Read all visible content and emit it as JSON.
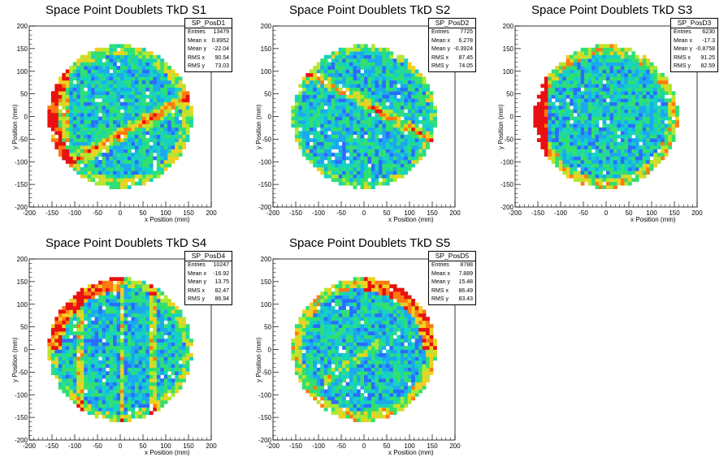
{
  "chart_data": [
    {
      "type": "heatmap",
      "title": "Space Point Doublets TkD S1",
      "xlabel": "x Position (mm)",
      "ylabel": "y Position (mm)",
      "xlim": [
        -200,
        200
      ],
      "ylim": [
        -200,
        200
      ],
      "xticks": [
        -200,
        -150,
        -100,
        -50,
        0,
        50,
        100,
        150,
        200
      ],
      "yticks": [
        -200,
        -150,
        -100,
        -50,
        0,
        50,
        100,
        150,
        200
      ],
      "stats": {
        "name": "SP_PosD1",
        "rows": [
          {
            "label": "Entries",
            "value": "13479"
          },
          {
            "label": "Mean x",
            "value": "0.8952"
          },
          {
            "label": "Mean y",
            "value": "-22.04"
          },
          {
            "label": "RMS x",
            "value": "90.54"
          },
          {
            "label": "RMS y",
            "value": "73.03"
          }
        ]
      },
      "pattern": "diagonal-up-band-and-left-edge"
    },
    {
      "type": "heatmap",
      "title": "Space Point Doublets TkD S2",
      "xlabel": "x Position (mm)",
      "ylabel": "y Position (mm)",
      "xlim": [
        -200,
        200
      ],
      "ylim": [
        -200,
        200
      ],
      "xticks": [
        -200,
        -150,
        -100,
        -50,
        0,
        50,
        100,
        150,
        200
      ],
      "yticks": [
        -200,
        -150,
        -100,
        -50,
        0,
        50,
        100,
        150,
        200
      ],
      "stats": {
        "name": "SP_PosD2",
        "rows": [
          {
            "label": "Entries",
            "value": "7725"
          },
          {
            "label": "Mean x",
            "value": "6.278"
          },
          {
            "label": "Mean y",
            "value": "-0.3924"
          },
          {
            "label": "RMS x",
            "value": "87.45"
          },
          {
            "label": "RMS y",
            "value": "74.05"
          }
        ]
      },
      "pattern": "diagonal-down-band"
    },
    {
      "type": "heatmap",
      "title": "Space Point Doublets TkD S3",
      "xlabel": "x Position (mm)",
      "ylabel": "y Position (mm)",
      "xlim": [
        -200,
        200
      ],
      "ylim": [
        -200,
        200
      ],
      "xticks": [
        -200,
        -150,
        -100,
        -50,
        0,
        50,
        100,
        150,
        200
      ],
      "yticks": [
        -200,
        -150,
        -100,
        -50,
        0,
        50,
        100,
        150,
        200
      ],
      "stats": {
        "name": "SP_PosD3",
        "rows": [
          {
            "label": "Entries",
            "value": "6230"
          },
          {
            "label": "Mean x",
            "value": "-17.3"
          },
          {
            "label": "Mean y",
            "value": "-0.8758"
          },
          {
            "label": "RMS x",
            "value": "91.25"
          },
          {
            "label": "RMS y",
            "value": "82.59"
          }
        ]
      },
      "pattern": "left-edge"
    },
    {
      "type": "heatmap",
      "title": "Space Point Doublets TkD S4",
      "xlabel": "x Position (mm)",
      "ylabel": "y Position (mm)",
      "xlim": [
        -200,
        200
      ],
      "ylim": [
        -200,
        200
      ],
      "xticks": [
        -200,
        -150,
        -100,
        -50,
        0,
        50,
        100,
        150,
        200
      ],
      "yticks": [
        -200,
        -150,
        -100,
        -50,
        0,
        50,
        100,
        150,
        200
      ],
      "stats": {
        "name": "SP_PosD4",
        "rows": [
          {
            "label": "Entries",
            "value": "10247"
          },
          {
            "label": "Mean x",
            "value": "-16.92"
          },
          {
            "label": "Mean y",
            "value": "13.75"
          },
          {
            "label": "RMS x",
            "value": "82.47"
          },
          {
            "label": "RMS y",
            "value": "86.94"
          }
        ]
      },
      "pattern": "vertical-stripes-upper-left-arc"
    },
    {
      "type": "heatmap",
      "title": "Space Point Doublets TkD S5",
      "xlabel": "x Position (mm)",
      "ylabel": "y Position (mm)",
      "xlim": [
        -200,
        200
      ],
      "ylim": [
        -200,
        200
      ],
      "xticks": [
        -200,
        -150,
        -100,
        -50,
        0,
        50,
        100,
        150,
        200
      ],
      "yticks": [
        -200,
        -150,
        -100,
        -50,
        0,
        50,
        100,
        150,
        200
      ],
      "stats": {
        "name": "SP_PosD5",
        "rows": [
          {
            "label": "Entries",
            "value": "8788"
          },
          {
            "label": "Mean x",
            "value": "7.889"
          },
          {
            "label": "Mean y",
            "value": "15.48"
          },
          {
            "label": "RMS x",
            "value": "86.49"
          },
          {
            "label": "RMS y",
            "value": "83.43"
          }
        ]
      },
      "pattern": "upper-right-arc-and-diagonal"
    }
  ],
  "colors": {
    "palette": [
      "#8000d0",
      "#3a2cff",
      "#2a6cff",
      "#1ca8f0",
      "#16d2c0",
      "#30e070",
      "#b0e830",
      "#f0d020",
      "#ff7a10",
      "#e81010"
    ],
    "axis": "#000000"
  }
}
